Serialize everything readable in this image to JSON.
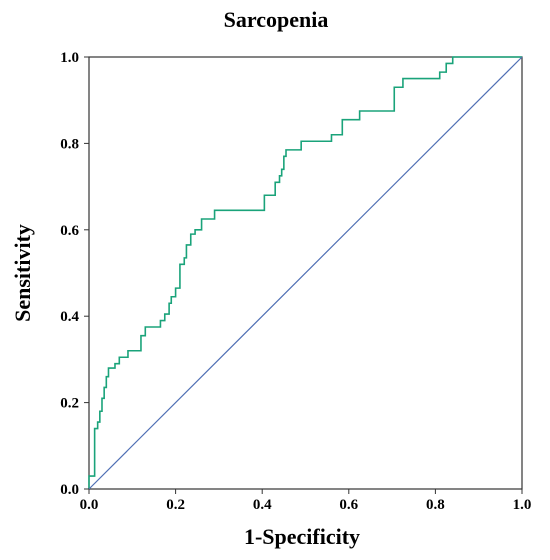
{
  "chart_data": {
    "type": "line",
    "title": "Sarcopenia",
    "xlabel": "1-Specificity",
    "ylabel": "Sensitivity",
    "xlim": [
      0,
      1
    ],
    "ylim": [
      0,
      1
    ],
    "xticks": [
      "0.0",
      "0.2",
      "0.4",
      "0.6",
      "0.8",
      "1.0"
    ],
    "yticks": [
      "0.0",
      "0.2",
      "0.4",
      "0.6",
      "0.8",
      "1.0"
    ],
    "grid": false,
    "legend": "none",
    "series": [
      {
        "style": "step",
        "color": "#1aa37a",
        "x": [
          0.0,
          0.0,
          0.013,
          0.013,
          0.02,
          0.02,
          0.025,
          0.025,
          0.03,
          0.03,
          0.035,
          0.035,
          0.04,
          0.04,
          0.045,
          0.045,
          0.06,
          0.06,
          0.07,
          0.07,
          0.09,
          0.09,
          0.12,
          0.12,
          0.13,
          0.13,
          0.165,
          0.165,
          0.175,
          0.175,
          0.185,
          0.185,
          0.19,
          0.19,
          0.2,
          0.2,
          0.21,
          0.21,
          0.22,
          0.22,
          0.225,
          0.225,
          0.235,
          0.235,
          0.245,
          0.245,
          0.26,
          0.26,
          0.29,
          0.29,
          0.405,
          0.405,
          0.43,
          0.43,
          0.44,
          0.44,
          0.445,
          0.445,
          0.45,
          0.45,
          0.455,
          0.455,
          0.49,
          0.49,
          0.56,
          0.56,
          0.585,
          0.585,
          0.625,
          0.625,
          0.705,
          0.705,
          0.725,
          0.725,
          0.81,
          0.81,
          0.825,
          0.825,
          0.84,
          0.84,
          0.98,
          0.98,
          1.0
        ],
        "y": [
          0.0,
          0.03,
          0.03,
          0.14,
          0.14,
          0.155,
          0.155,
          0.18,
          0.18,
          0.21,
          0.21,
          0.235,
          0.235,
          0.26,
          0.26,
          0.28,
          0.28,
          0.29,
          0.29,
          0.305,
          0.305,
          0.32,
          0.32,
          0.355,
          0.355,
          0.375,
          0.375,
          0.39,
          0.39,
          0.405,
          0.405,
          0.43,
          0.43,
          0.445,
          0.445,
          0.465,
          0.465,
          0.52,
          0.52,
          0.535,
          0.535,
          0.565,
          0.565,
          0.59,
          0.59,
          0.6,
          0.6,
          0.625,
          0.625,
          0.645,
          0.645,
          0.68,
          0.68,
          0.71,
          0.71,
          0.725,
          0.725,
          0.74,
          0.74,
          0.77,
          0.77,
          0.785,
          0.785,
          0.805,
          0.805,
          0.82,
          0.82,
          0.855,
          0.855,
          0.875,
          0.875,
          0.93,
          0.93,
          0.95,
          0.95,
          0.965,
          0.965,
          0.985,
          0.985,
          1.0,
          1.0,
          1.0,
          1.0
        ]
      },
      {
        "style": "reference",
        "color": "#4f6fb4",
        "x": [
          0,
          1
        ],
        "y": [
          0,
          1
        ]
      }
    ]
  }
}
